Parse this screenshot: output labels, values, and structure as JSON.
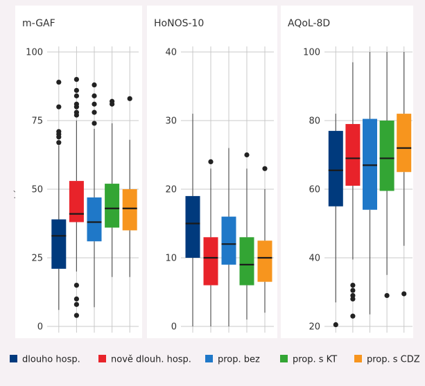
{
  "chart_data": {
    "type": "boxplot",
    "ylabel": "skóre",
    "legend": {
      "placement": "bottom",
      "items": [
        {
          "name": "dlouho hosp.",
          "color": "#003a7d"
        },
        {
          "name": "nově dlouh. hosp.",
          "color": "#e8232a"
        },
        {
          "name": "prop. bez",
          "color": "#1f78c8"
        },
        {
          "name": "prop. s KT",
          "color": "#33a534"
        },
        {
          "name": "prop. s CDZ",
          "color": "#f7951e"
        }
      ]
    },
    "panels": [
      {
        "title": "m-GAF",
        "ylim": [
          0,
          100
        ],
        "yticks": [
          0,
          25,
          50,
          75,
          100
        ],
        "boxes": [
          {
            "whisker_low": 6,
            "q1": 21,
            "median": 33,
            "q3": 39,
            "whisker_high": 66,
            "outliers": [
              67,
              69,
              70,
              71,
              80,
              89
            ]
          },
          {
            "whisker_low": 20,
            "q1": 38,
            "median": 41,
            "q3": 53,
            "whisker_high": 75,
            "outliers": [
              4,
              8,
              10,
              15,
              77,
              78,
              80,
              81,
              84,
              86,
              90
            ]
          },
          {
            "whisker_low": 7,
            "q1": 31,
            "median": 38,
            "q3": 47,
            "whisker_high": 72,
            "outliers": [
              74,
              78,
              81,
              84,
              88
            ]
          },
          {
            "whisker_low": 18,
            "q1": 36,
            "median": 43,
            "q3": 52,
            "whisker_high": 74,
            "outliers": [
              81,
              82
            ]
          },
          {
            "whisker_low": 18,
            "q1": 35,
            "median": 43,
            "q3": 50,
            "whisker_high": 68,
            "outliers": [
              83
            ]
          }
        ]
      },
      {
        "title": "HoNOS-10",
        "ylim": [
          0,
          40
        ],
        "yticks": [
          0,
          10,
          20,
          30,
          40
        ],
        "boxes": [
          {
            "whisker_low": 0,
            "q1": 10,
            "median": 15,
            "q3": 19,
            "whisker_high": 31,
            "outliers": []
          },
          {
            "whisker_low": 0,
            "q1": 6,
            "median": 10,
            "q3": 13,
            "whisker_high": 23,
            "outliers": [
              24
            ]
          },
          {
            "whisker_low": 0,
            "q1": 9,
            "median": 12,
            "q3": 16,
            "whisker_high": 26,
            "outliers": []
          },
          {
            "whisker_low": 1,
            "q1": 6,
            "median": 9,
            "q3": 13,
            "whisker_high": 23,
            "outliers": [
              25
            ]
          },
          {
            "whisker_low": 2,
            "q1": 6.5,
            "median": 10,
            "q3": 12.5,
            "whisker_high": 20,
            "outliers": [
              23
            ]
          }
        ]
      },
      {
        "title": "AQoL-8D",
        "ylim": [
          20,
          100
        ],
        "yticks": [
          20,
          40,
          60,
          80,
          100
        ],
        "boxes": [
          {
            "whisker_low": 27,
            "q1": 55,
            "median": 65.5,
            "q3": 77,
            "whisker_high": 82,
            "outliers": [
              20.5
            ]
          },
          {
            "whisker_low": 39.5,
            "q1": 61,
            "median": 69,
            "q3": 79,
            "whisker_high": 97,
            "outliers": [
              23,
              28,
              29,
              30.5,
              32
            ]
          },
          {
            "whisker_low": 23.5,
            "q1": 54,
            "median": 67,
            "q3": 80.5,
            "whisker_high": 100,
            "outliers": []
          },
          {
            "whisker_low": 35,
            "q1": 59.5,
            "median": 69,
            "q3": 80,
            "whisker_high": 100,
            "outliers": [
              29
            ]
          },
          {
            "whisker_low": 43.5,
            "q1": 65,
            "median": 72,
            "q3": 82,
            "whisker_high": 100,
            "outliers": [
              29.5
            ]
          }
        ]
      }
    ]
  }
}
